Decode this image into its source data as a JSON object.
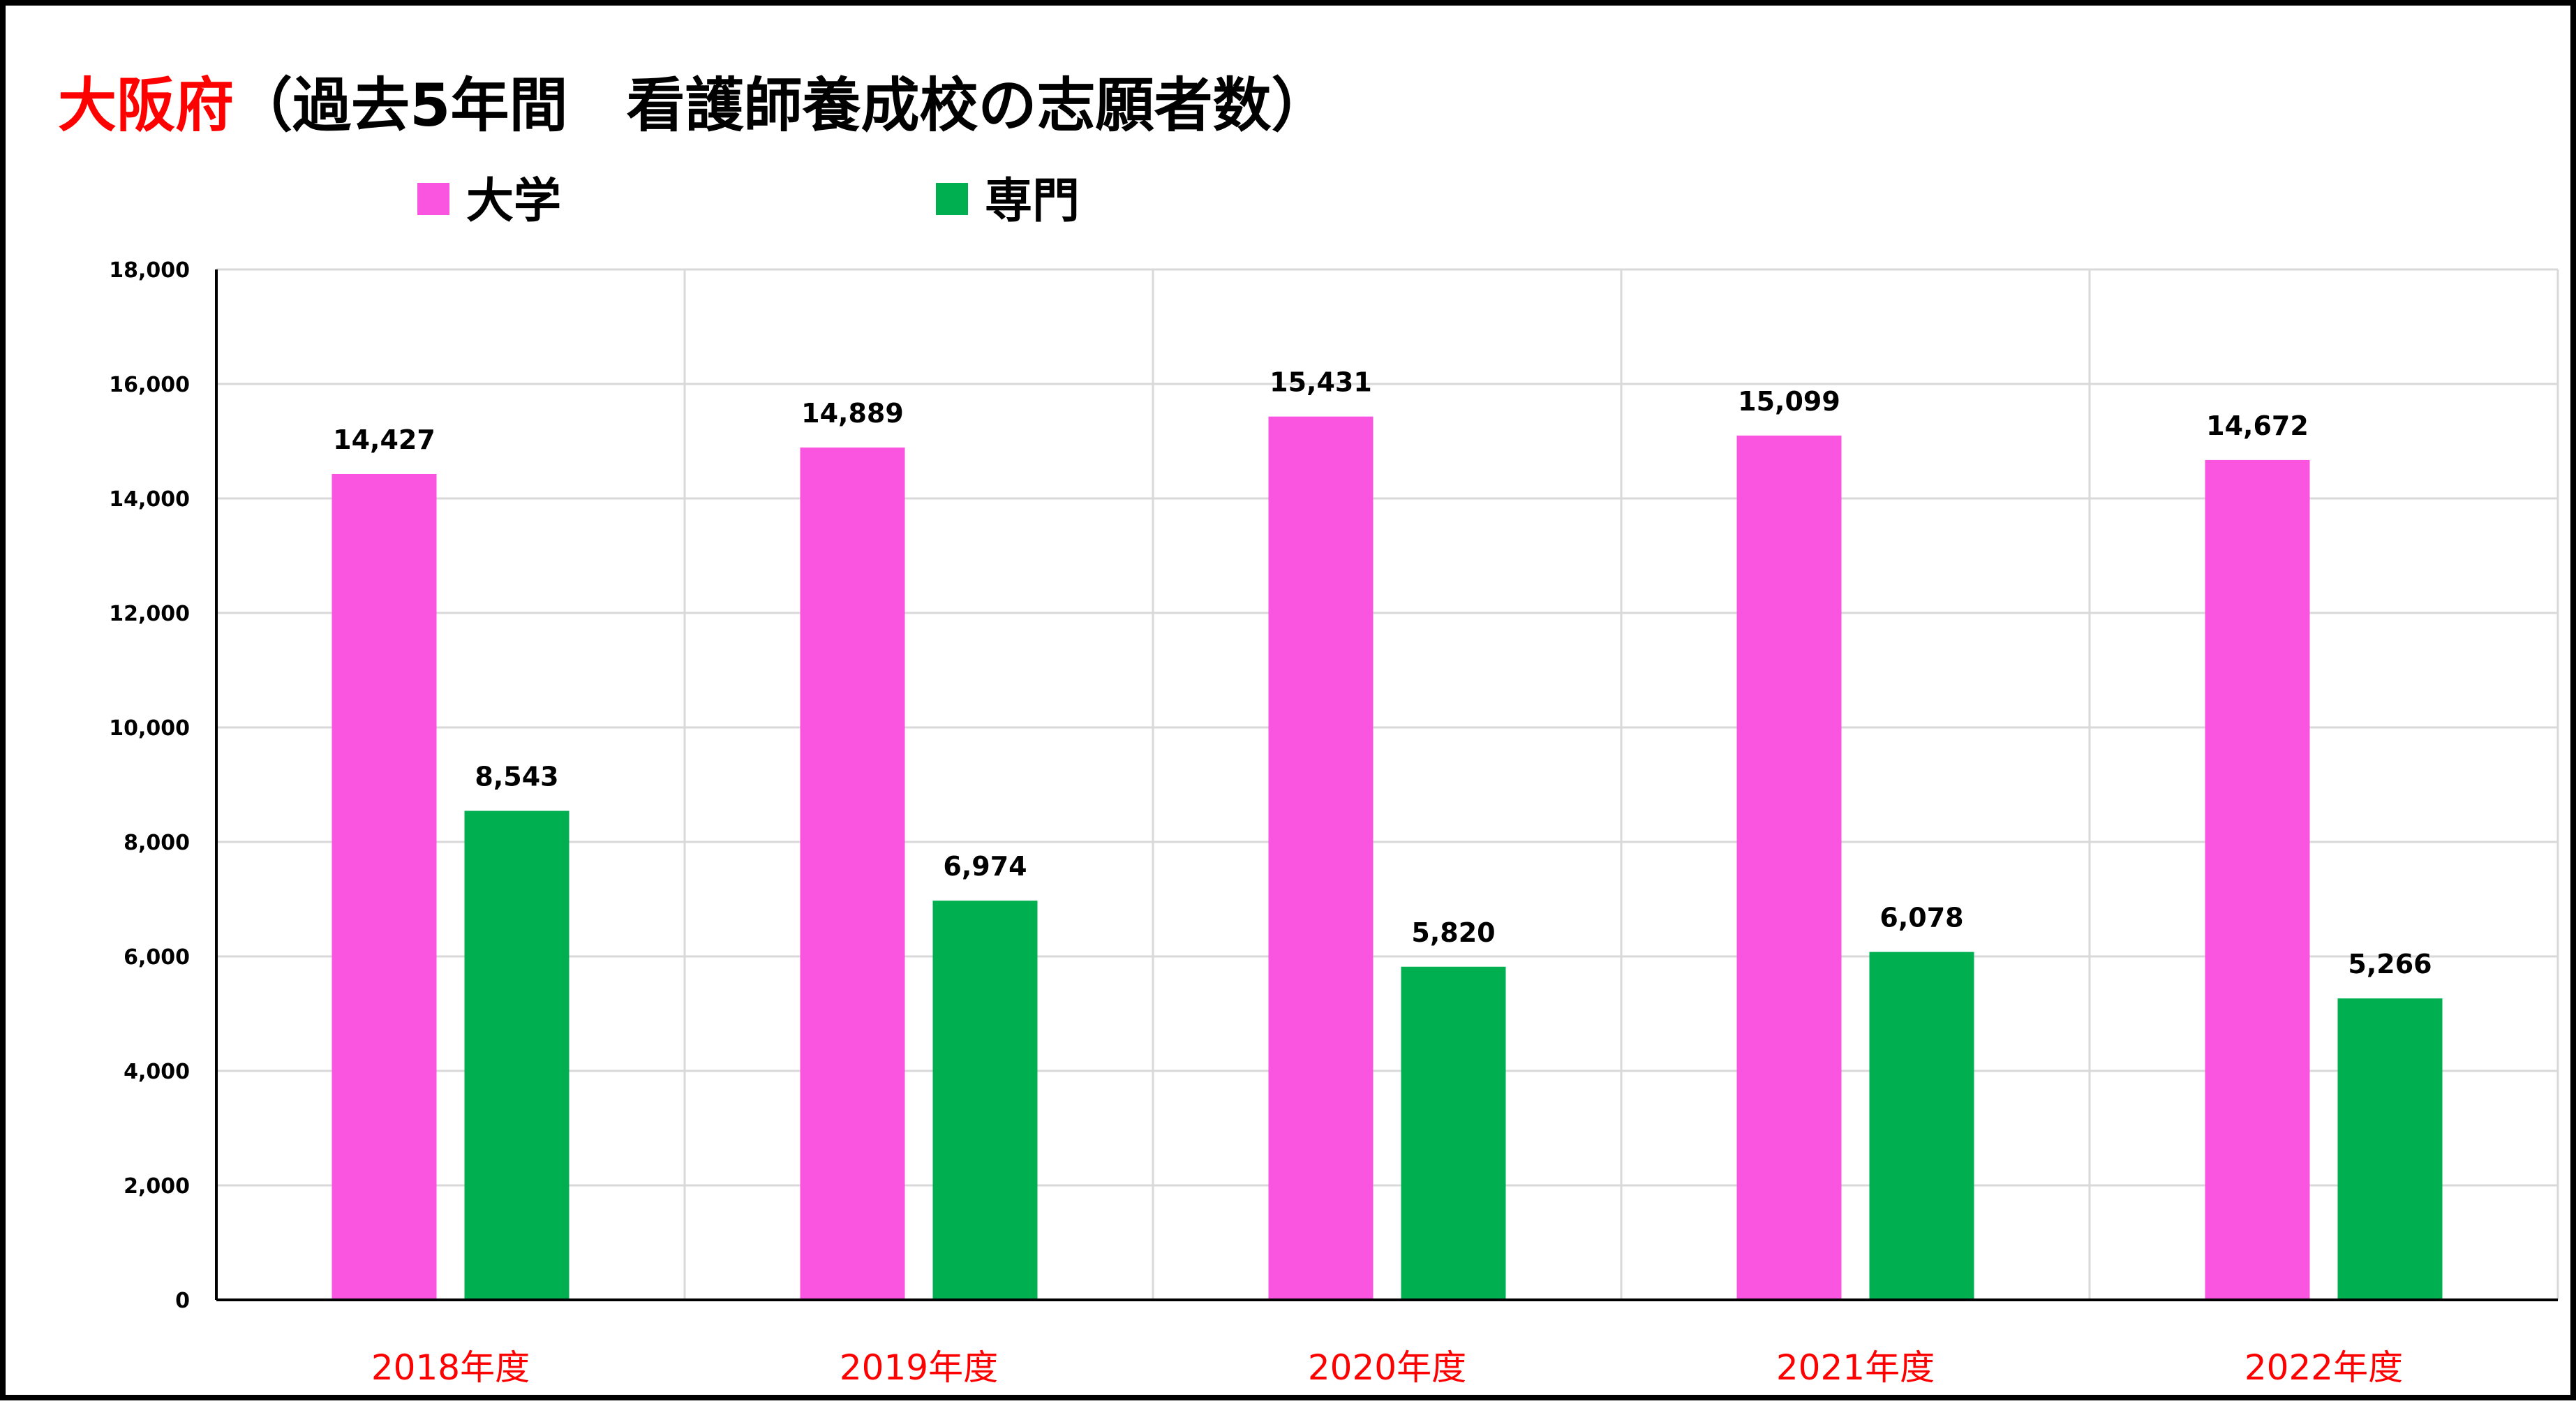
{
  "chart_data": {
    "type": "bar",
    "title": {
      "prefix": "大阪府",
      "rest": "（過去5年間　看護師養成校の志願者数）"
    },
    "categories": [
      "2018年度",
      "2019年度",
      "2020年度",
      "2021年度",
      "2022年度"
    ],
    "series": [
      {
        "name": "大学",
        "color": "#f955e0",
        "values": [
          14427,
          14889,
          15431,
          15099,
          14672
        ],
        "labels": [
          "14,427",
          "14,889",
          "15,431",
          "15,099",
          "14,672"
        ]
      },
      {
        "name": "専門",
        "color": "#00b050",
        "values": [
          8543,
          6974,
          5820,
          6078,
          5266
        ],
        "labels": [
          "8,543",
          "6,974",
          "5,820",
          "6,078",
          "5,266"
        ]
      }
    ],
    "ylim": [
      0,
      18000
    ],
    "yticks": [
      0,
      2000,
      4000,
      6000,
      8000,
      10000,
      12000,
      14000,
      16000,
      18000
    ],
    "ytick_labels": [
      "0",
      "2,000",
      "4,000",
      "6,000",
      "8,000",
      "10,000",
      "12,000",
      "14,000",
      "16,000",
      "18,000"
    ],
    "grid": true,
    "legend_position": "top-left",
    "title_prefix_color": "#ff0000",
    "category_label_color": "#ff0000"
  }
}
